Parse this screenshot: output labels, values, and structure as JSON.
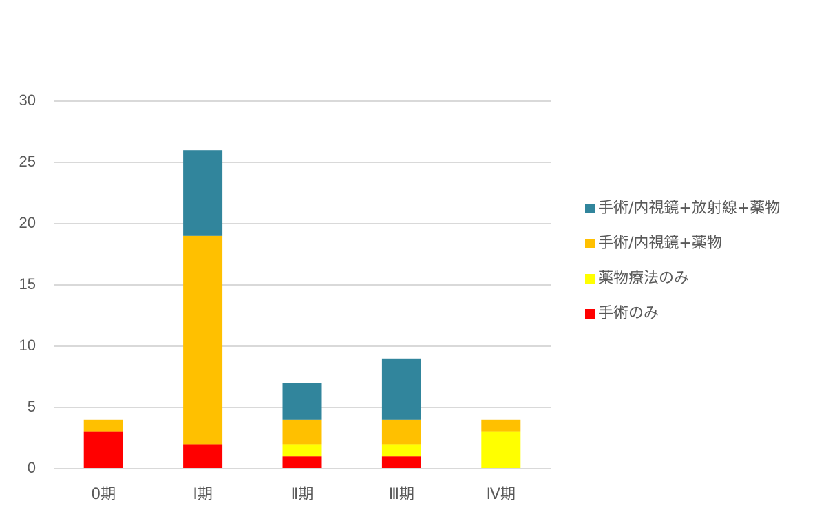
{
  "chart_data": {
    "type": "stacked_bar",
    "categories": [
      "0期",
      "Ⅰ期",
      "Ⅱ期",
      "Ⅲ期",
      "Ⅳ期"
    ],
    "series": [
      {
        "name": "手術のみ",
        "color": "#ff0000",
        "values": [
          3,
          2,
          1,
          1,
          0
        ]
      },
      {
        "name": "薬物療法のみ",
        "color": "#ffff00",
        "values": [
          0,
          0,
          1,
          1,
          3
        ]
      },
      {
        "name": "手術/内視鏡+薬物",
        "color": "#ffc000",
        "values": [
          1,
          17,
          2,
          2,
          1
        ]
      },
      {
        "name": "手術/内視鏡+放射線+薬物",
        "color": "#31859c",
        "values": [
          0,
          7,
          3,
          5,
          0
        ]
      }
    ],
    "ylim": [
      0,
      30
    ],
    "yticks": [
      0,
      5,
      10,
      15,
      20,
      25,
      30
    ],
    "grid": true,
    "legend": "right"
  }
}
